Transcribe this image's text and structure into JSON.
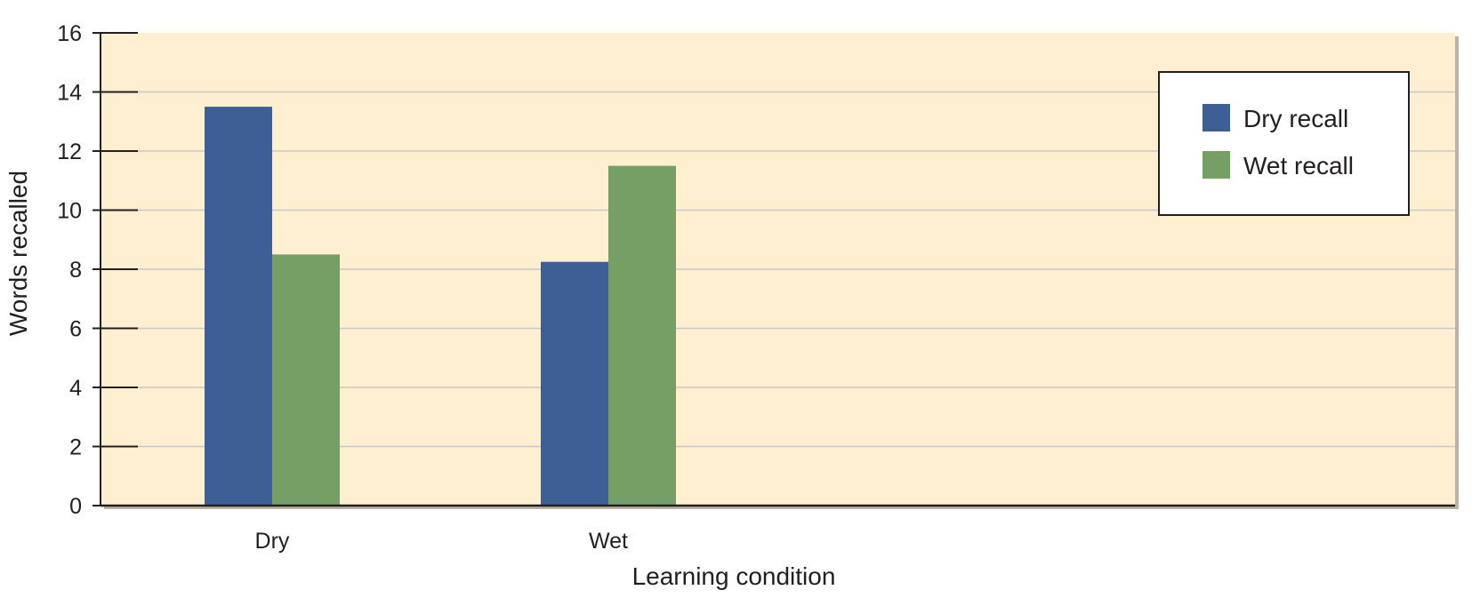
{
  "chart_data": {
    "type": "bar",
    "categories": [
      "Dry",
      "Wet"
    ],
    "series": [
      {
        "name": "Dry recall",
        "values": [
          13.5,
          8.25
        ]
      },
      {
        "name": "Wet recall",
        "values": [
          8.5,
          11.5
        ]
      }
    ],
    "xlabel": "Learning condition",
    "ylabel": "Words recalled",
    "ylim": [
      0,
      16
    ],
    "yticks": [
      0,
      2,
      4,
      6,
      8,
      10,
      12,
      14,
      16
    ],
    "grid": true,
    "legend_position": "top-right",
    "colors": {
      "plot_background": "#fdefd0",
      "grid": "#c8c8c8",
      "series": [
        "#3e5f96",
        "#769f66"
      ]
    }
  }
}
